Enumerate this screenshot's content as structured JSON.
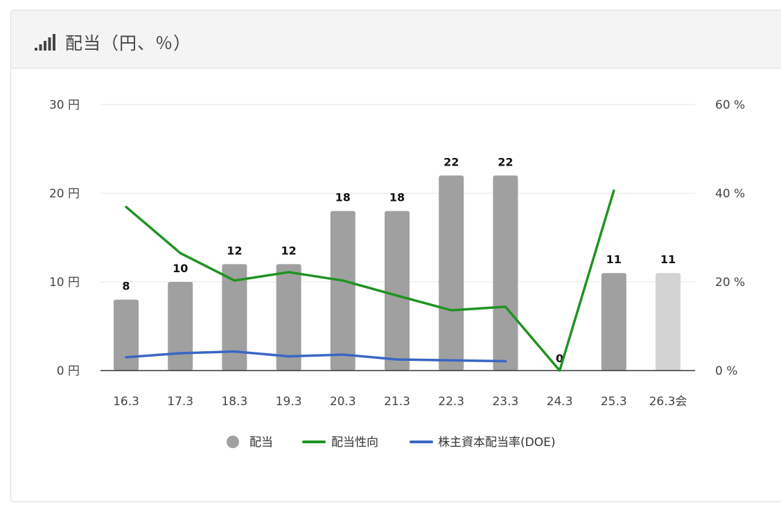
{
  "header": {
    "title": "配当（円、％）",
    "icon": "bar-signal-icon"
  },
  "colors": {
    "bar": "#a0a0a0",
    "bar_forecast": "#d3d3d3",
    "payout_line": "#1f9322",
    "doe_line": "#3a66c4",
    "grid": "#e5e5e5",
    "axis": "#333333"
  },
  "chart_data": {
    "type": "bar",
    "categories": [
      "16.3",
      "17.3",
      "18.3",
      "19.3",
      "20.3",
      "21.3",
      "22.3",
      "23.3",
      "24.3",
      "25.3",
      "26.3会"
    ],
    "series": [
      {
        "name": "配当",
        "type": "bar",
        "axis": "left",
        "values": [
          8,
          10,
          12,
          12,
          18,
          18,
          22,
          22,
          0,
          11,
          11
        ],
        "labels": [
          "8",
          "10",
          "12",
          "12",
          "18",
          "18",
          "22",
          "22",
          "0",
          "11",
          "11"
        ],
        "forecast_index": 10
      },
      {
        "name": "配当性向",
        "type": "line",
        "axis": "right",
        "values": [
          36.9,
          26.5,
          20.3,
          22.2,
          20.3,
          16.9,
          13.6,
          14.4,
          0,
          40.6,
          null
        ]
      },
      {
        "name": "株主資本配当率(DOE)",
        "type": "line",
        "axis": "right",
        "values": [
          3.0,
          3.9,
          4.3,
          3.2,
          3.6,
          2.5,
          2.3,
          2.1,
          null,
          null,
          null
        ]
      }
    ],
    "y_left": {
      "min": 0,
      "max": 30,
      "ticks": [
        "0 円",
        "10 円",
        "20 円",
        "30 円"
      ],
      "tick_values": [
        0,
        10,
        20,
        30
      ]
    },
    "y_right": {
      "min": 0,
      "max": 60,
      "ticks": [
        "0 %",
        "20 %",
        "40 %",
        "60 %"
      ],
      "tick_values": [
        0,
        20,
        40,
        60
      ]
    },
    "grid": true,
    "legend": {
      "position": "bottom",
      "items": [
        "配当",
        "配当性向",
        "株主資本配当率(DOE)"
      ]
    }
  }
}
